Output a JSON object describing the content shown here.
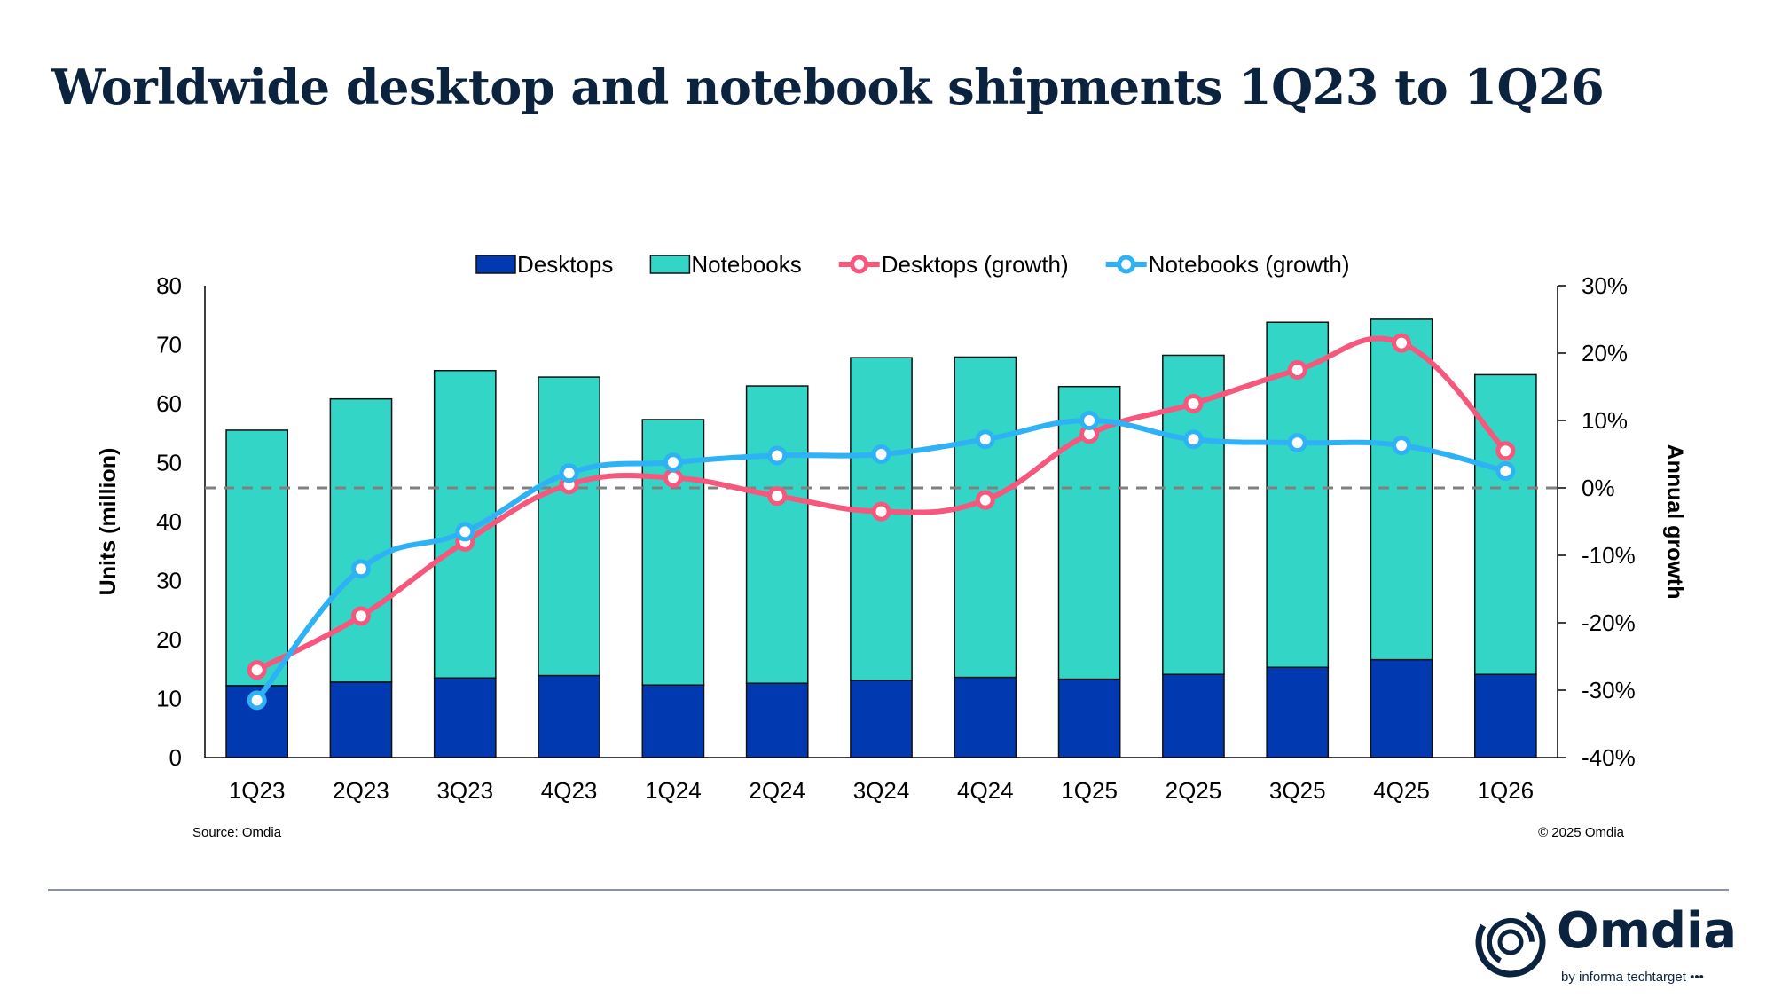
{
  "title": "Worldwide desktop and notebook shipments 1Q23 to 1Q26",
  "source": "Source: Omdia",
  "copyright": "© 2025 Omdia",
  "logo": {
    "name": "Omdia",
    "tagline": "by informa techtarget"
  },
  "chart_data": {
    "type": "bar",
    "stacked": true,
    "categories": [
      "1Q23",
      "2Q23",
      "3Q23",
      "4Q23",
      "1Q24",
      "2Q24",
      "3Q24",
      "4Q24",
      "1Q25",
      "2Q25",
      "3Q25",
      "4Q25",
      "1Q26"
    ],
    "ylabel": "Units (million)",
    "y2label": "Annual growth",
    "ylim": [
      0,
      80
    ],
    "yticks": [
      "0",
      "10",
      "20",
      "30",
      "40",
      "50",
      "60",
      "70",
      "80"
    ],
    "y2lim": [
      -40,
      30
    ],
    "y2ticks": [
      "-40%",
      "-30%",
      "-20%",
      "-10%",
      "0%",
      "10%",
      "20%",
      "30%"
    ],
    "legend_position": "top",
    "series": [
      {
        "name": "Desktops",
        "kind": "bar",
        "axis": "left",
        "color": "#0039b0",
        "values": [
          12.2,
          12.8,
          13.5,
          13.9,
          12.3,
          12.6,
          13.1,
          13.6,
          13.3,
          14.1,
          15.3,
          16.6,
          14.1
        ]
      },
      {
        "name": "Notebooks",
        "kind": "bar",
        "axis": "left",
        "color": "#33d6c6",
        "values": [
          43.3,
          48.0,
          52.1,
          50.6,
          45.0,
          50.4,
          54.7,
          54.3,
          49.6,
          54.1,
          58.5,
          57.7,
          50.8
        ]
      },
      {
        "name": "Desktops (growth)",
        "kind": "line",
        "axis": "right",
        "color": "#f5587c",
        "values": [
          -27,
          -19,
          -8,
          0.5,
          1.5,
          -1.2,
          -3.5,
          -1.8,
          8,
          12.5,
          17.5,
          21.5,
          5.5
        ]
      },
      {
        "name": "Notebooks (growth)",
        "kind": "line",
        "axis": "right",
        "color": "#2eb2f5",
        "values": [
          -31.5,
          -12,
          -6.5,
          2.2,
          3.8,
          4.8,
          5,
          7.2,
          10,
          7.2,
          6.7,
          6.3,
          2.5
        ]
      }
    ]
  }
}
